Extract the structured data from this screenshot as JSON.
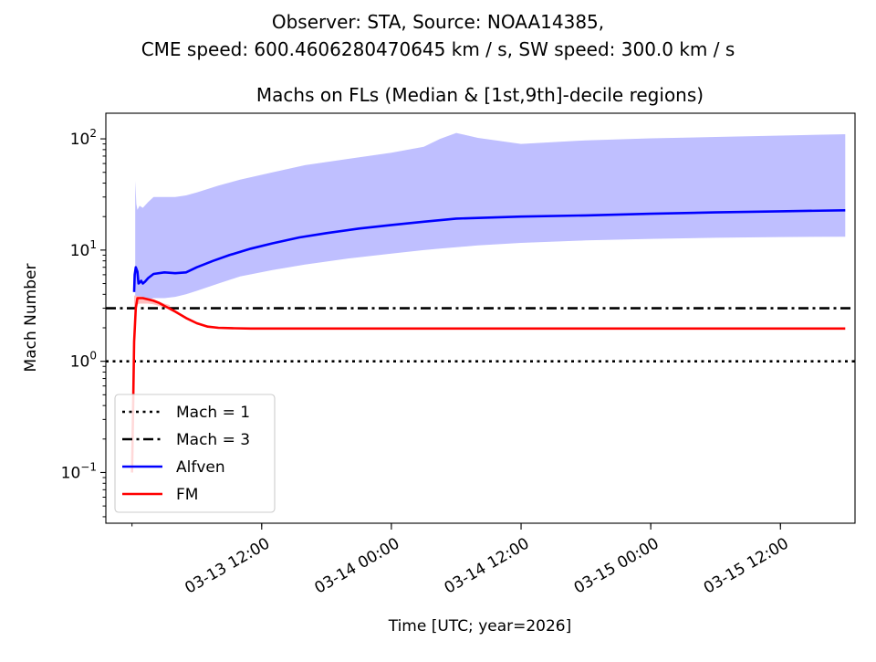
{
  "figure": {
    "suptitle_line1": "Observer: STA, Source: NOAA14385,",
    "suptitle_line2": "CME speed: 600.4606280470645 km / s, SW speed: 300.0 km / s"
  },
  "chart_data": {
    "type": "line",
    "title": "Machs on FLs (Median & [1st,9th]-decile regions)",
    "xlabel": "Time [UTC; year=2026]",
    "ylabel": "Mach Number",
    "yscale": "log",
    "x_unit": "hours since 03-13 00:00",
    "xlim": [
      -2.42,
      66.9
    ],
    "ylim": [
      0.035,
      170
    ],
    "x_ticks": [
      {
        "x": 12,
        "label": "03-13 12:00"
      },
      {
        "x": 24,
        "label": "03-14 00:00"
      },
      {
        "x": 36,
        "label": "03-14 12:00"
      },
      {
        "x": 48,
        "label": "03-15 00:00"
      },
      {
        "x": 60,
        "label": "03-15 12:00"
      }
    ],
    "y_ticks": [
      {
        "value": 0.1,
        "base": "10",
        "exp": "−1"
      },
      {
        "value": 1,
        "base": "10",
        "exp": "0"
      },
      {
        "value": 10,
        "base": "10",
        "exp": "1"
      },
      {
        "value": 100,
        "base": "10",
        "exp": "2"
      }
    ],
    "reference_lines": [
      {
        "name": "Mach = 1",
        "value": 1,
        "style": "dotted",
        "color": "#000000"
      },
      {
        "name": "Mach = 3",
        "value": 3,
        "style": "dashdot",
        "color": "#000000"
      }
    ],
    "series": [
      {
        "name": "Alfven",
        "color": "#0000ff",
        "band_color": "#bfbfff",
        "x": [
          0.2,
          0.25,
          0.35,
          0.5,
          0.6,
          0.7,
          0.85,
          1.0,
          1.2,
          1.5,
          2.0,
          3.0,
          4.0,
          5.0,
          6.0,
          7.5,
          9.0,
          11.0,
          13.0,
          15.5,
          18.0,
          21.0,
          24.0,
          27.0,
          30.0,
          36.0,
          42.0,
          48.0,
          54.0,
          60.0,
          66.0
        ],
        "values": [
          4.2,
          6.0,
          7.0,
          6.4,
          5.0,
          5.1,
          5.3,
          5.0,
          5.2,
          5.6,
          6.1,
          6.3,
          6.2,
          6.3,
          7.0,
          8.0,
          9.0,
          10.3,
          11.5,
          13.0,
          14.2,
          15.6,
          16.8,
          18.0,
          19.2,
          20.0,
          20.5,
          21.2,
          21.8,
          22.3,
          22.8
        ],
        "band_x": [
          0.3,
          0.4,
          0.5,
          0.7,
          1.0,
          1.5,
          2.0,
          3.0,
          4.0,
          5.0,
          6.0,
          8.0,
          10.0,
          13.0,
          16.0,
          20.0,
          24.0,
          27.0,
          28.5,
          30.0,
          32.0,
          36.0,
          42.0,
          48.0,
          54.0,
          60.0,
          66.0
        ],
        "band_high": [
          42,
          26,
          23,
          25,
          24,
          27,
          30,
          30,
          30,
          31,
          33,
          38,
          43,
          50,
          58,
          66,
          75,
          85,
          100,
          113,
          102,
          90,
          97,
          101,
          104,
          107,
          110
        ],
        "band_low": [
          3.3,
          3.5,
          3.5,
          3.4,
          3.5,
          3.6,
          3.7,
          3.7,
          3.8,
          4.0,
          4.3,
          5.0,
          5.8,
          6.6,
          7.4,
          8.4,
          9.3,
          10.0,
          10.3,
          10.6,
          11.0,
          11.6,
          12.2,
          12.6,
          12.9,
          13.1,
          13.2
        ]
      },
      {
        "name": "FM",
        "color": "#ff0000",
        "band_color": "#ffbfbf",
        "x": [
          0.0,
          0.1,
          0.2,
          0.35,
          0.5,
          0.7,
          1.0,
          1.5,
          2.0,
          2.5,
          3.0,
          4.0,
          5.0,
          6.0,
          7.0,
          8.0,
          9.5,
          11.0,
          14.0,
          20.0,
          30.0,
          40.0,
          50.0,
          60.0,
          66.0
        ],
        "values": [
          0.1,
          0.35,
          1.5,
          3.0,
          3.7,
          3.7,
          3.7,
          3.6,
          3.5,
          3.35,
          3.15,
          2.8,
          2.45,
          2.2,
          2.05,
          2.0,
          1.98,
          1.97,
          1.97,
          1.97,
          1.97,
          1.97,
          1.97,
          1.97,
          1.97
        ],
        "band_x": [
          0.2,
          0.4,
          0.7,
          1.0,
          1.5,
          2.0,
          2.5,
          3.0,
          3.5
        ],
        "band_high": [
          3.9,
          3.9,
          3.85,
          3.8,
          3.7,
          3.6,
          3.45,
          3.3,
          3.2
        ],
        "band_low": [
          2.9,
          3.2,
          3.3,
          3.3,
          3.3,
          3.25,
          3.15,
          3.05,
          3.0
        ]
      }
    ],
    "legend": {
      "placement": "lower-left",
      "entries": [
        {
          "label": "Mach = 1",
          "style": "dotted",
          "color": "#000000"
        },
        {
          "label": "Mach = 3",
          "style": "dashdot",
          "color": "#000000"
        },
        {
          "label": "Alfven",
          "style": "solid",
          "color": "#0000ff"
        },
        {
          "label": "FM",
          "style": "solid",
          "color": "#ff0000"
        }
      ]
    }
  }
}
